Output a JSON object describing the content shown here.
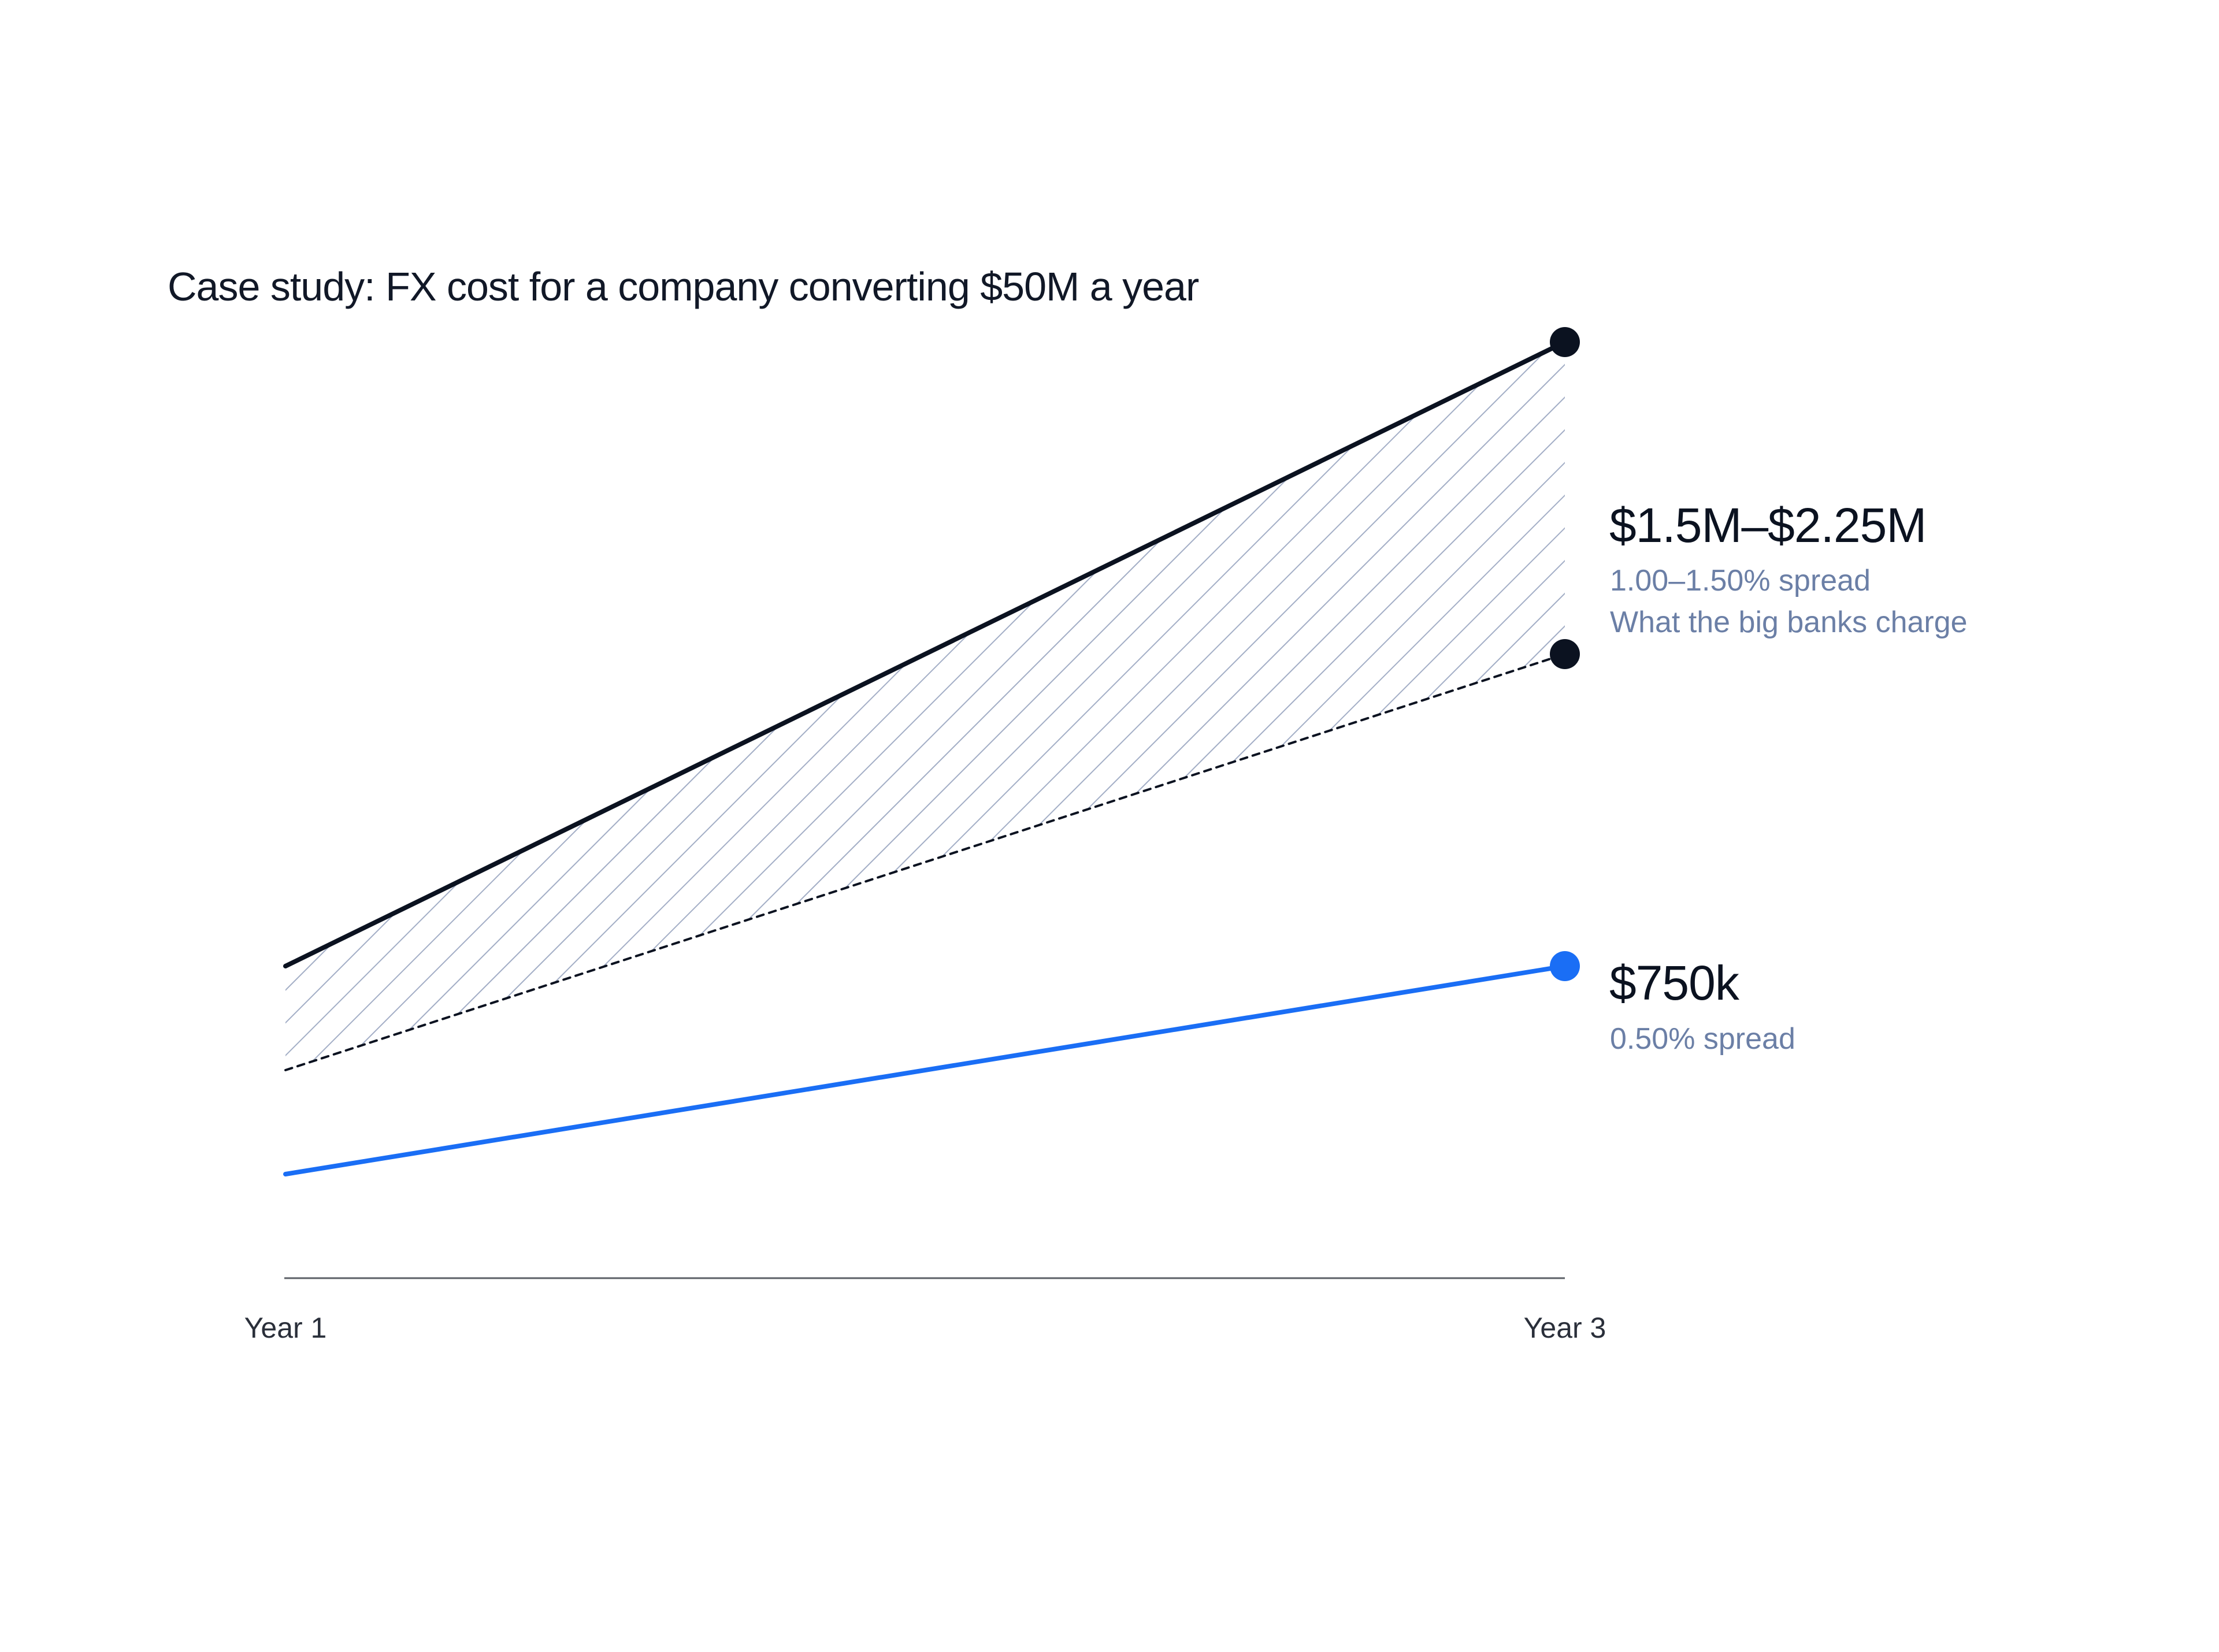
{
  "title": "Case study: FX cost for a company converting $50M a year",
  "colors": {
    "bank": "#0b1220",
    "tool": "#1a6ef5",
    "hatch": "#a3aec6",
    "axis": "#5b5f66",
    "sub_text": "#6b7fa6"
  },
  "chart_data": {
    "type": "line",
    "x_categories": [
      "Year 1",
      "Year 3"
    ],
    "ylim": [
      0,
      2500000
    ],
    "series": [
      {
        "key": "bank_high",
        "values": [
          750000,
          2250000
        ],
        "style": "solid",
        "color": "#0b1220"
      },
      {
        "key": "bank_low",
        "values": [
          500000,
          1500000
        ],
        "style": "dashed",
        "color": "#0b1220"
      },
      {
        "key": "tool",
        "values": [
          250000,
          750000
        ],
        "style": "solid",
        "color": "#1a6ef5"
      }
    ],
    "band": {
      "between": [
        "bank_low",
        "bank_high"
      ],
      "fill": "hatched"
    },
    "annotations": [
      {
        "value": "$1.5M–$2.25M",
        "lines": [
          "1.00–1.50% spread",
          "What the big banks charge"
        ]
      },
      {
        "value": "$750k",
        "lines": [
          "0.50% spread"
        ]
      }
    ]
  }
}
